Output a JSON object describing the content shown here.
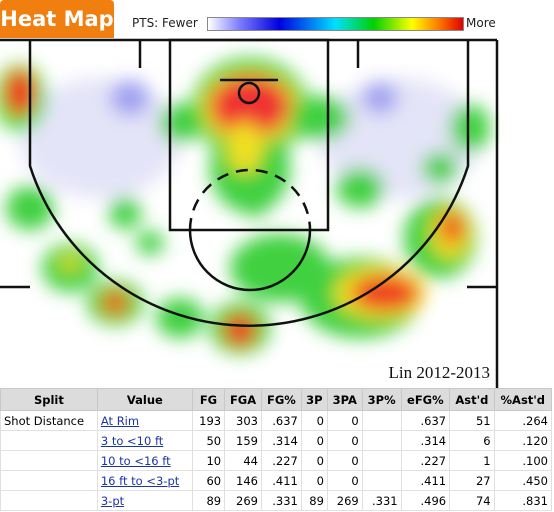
{
  "header": {
    "title": "Heat Map"
  },
  "legend": {
    "fewer": "PTS: Fewer",
    "more": "More"
  },
  "court": {
    "label": "Lin 2012-2013"
  },
  "table": {
    "columns": [
      "Split",
      "Value",
      "FG",
      "FGA",
      "FG%",
      "3P",
      "3PA",
      "3P%",
      "eFG%",
      "Ast'd",
      "%Ast'd"
    ],
    "rows": [
      [
        "Shot Distance",
        "At Rim",
        "193",
        "303",
        ".637",
        "0",
        "0",
        null,
        ".637",
        "51",
        ".264"
      ],
      [
        null,
        "3 to <10 ft",
        "50",
        "159",
        ".314",
        "0",
        "0",
        null,
        ".314",
        "6",
        ".120"
      ],
      [
        null,
        "10 to <16 ft",
        "10",
        "44",
        ".227",
        "0",
        "0",
        null,
        ".227",
        "1",
        ".100"
      ],
      [
        null,
        "16 ft to <3-pt",
        "60",
        "146",
        ".411",
        "0",
        "0",
        null,
        ".411",
        "27",
        ".450"
      ],
      [
        null,
        "3-pt",
        "89",
        "269",
        ".331",
        "89",
        "269",
        ".331",
        ".496",
        "74",
        ".831"
      ]
    ]
  }
}
